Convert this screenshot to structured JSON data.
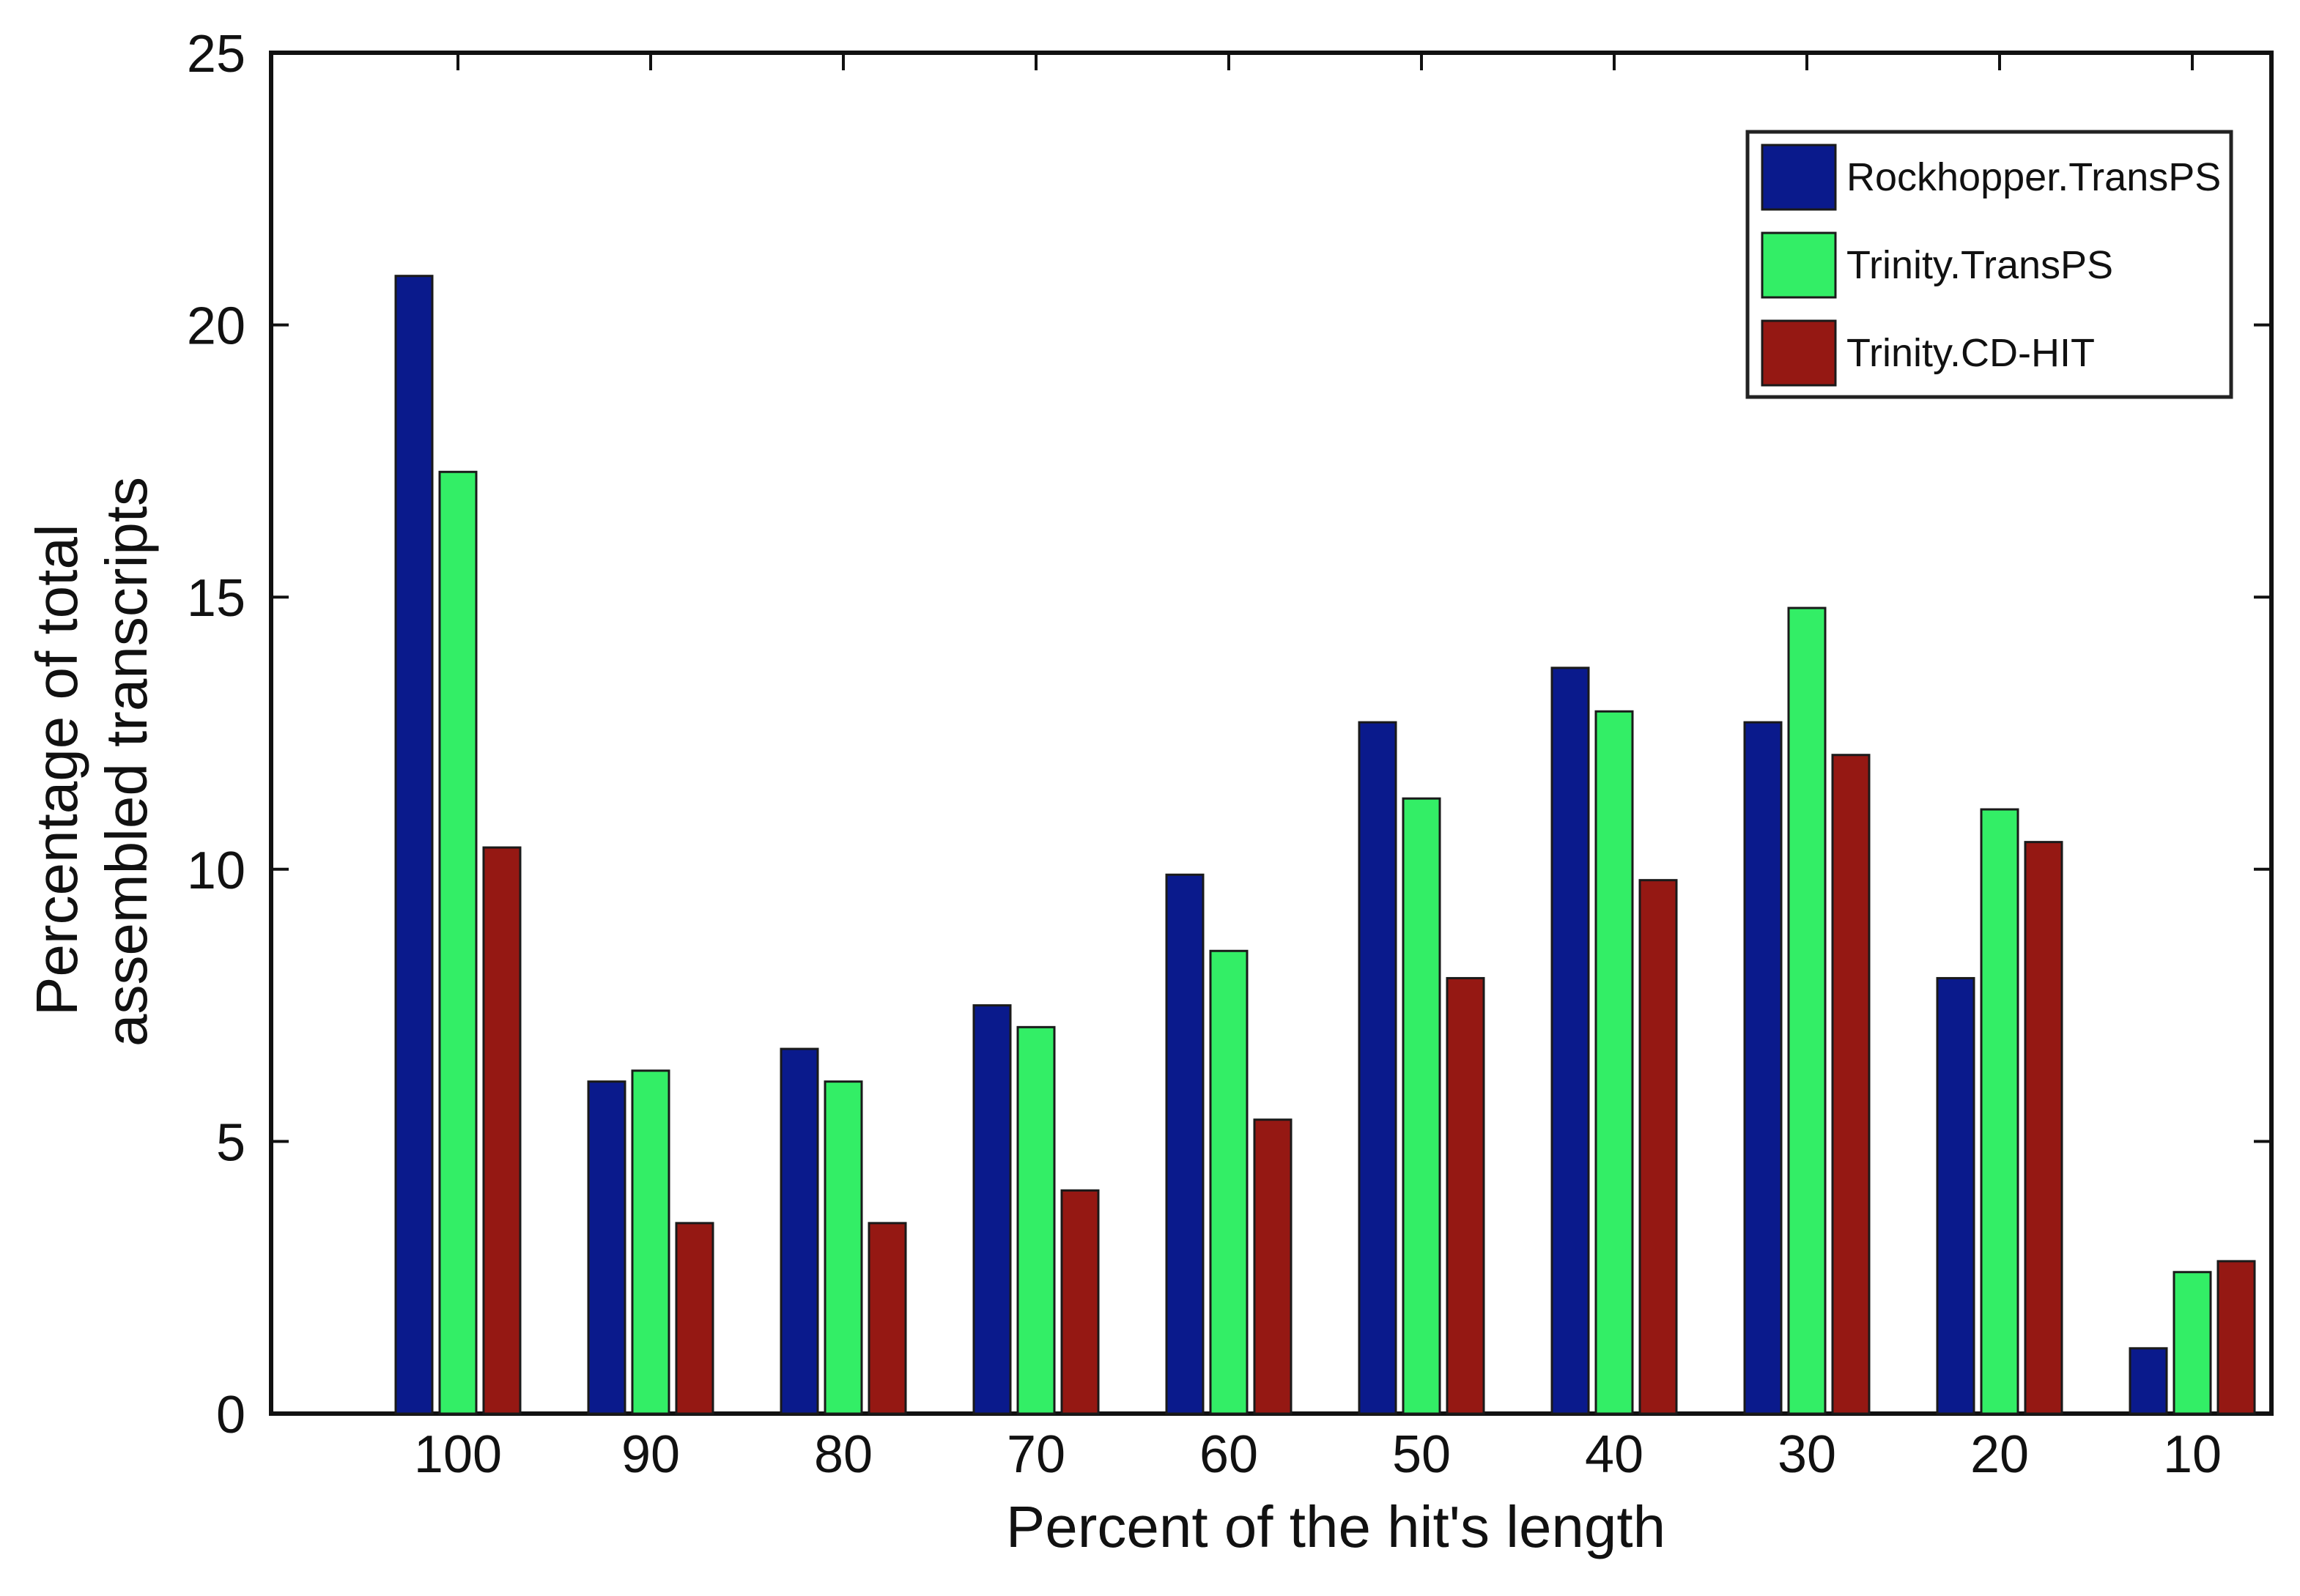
{
  "chart_data": {
    "type": "bar",
    "title": "",
    "xlabel": "Percent of the hit's length",
    "ylabel_lines": [
      "Percentage of total",
      "assembled transcripts"
    ],
    "categories": [
      "100",
      "90",
      "80",
      "70",
      "60",
      "50",
      "40",
      "30",
      "20",
      "10"
    ],
    "ylim": [
      0,
      25
    ],
    "yticks": [
      0,
      5,
      10,
      15,
      20,
      25
    ],
    "grid": false,
    "legend_position": "top-right",
    "series": [
      {
        "name": "Rockhopper.TransPS",
        "color": "#0a1a8c",
        "values": [
          20.9,
          6.1,
          6.7,
          7.5,
          9.9,
          12.7,
          13.7,
          12.7,
          8.0,
          1.2
        ]
      },
      {
        "name": "Trinity.TransPS",
        "color": "#33ee66",
        "values": [
          17.3,
          6.3,
          6.1,
          7.1,
          8.5,
          11.3,
          12.9,
          14.8,
          11.1,
          2.6
        ]
      },
      {
        "name": "Trinity.CD-HIT",
        "color": "#951813",
        "values": [
          10.4,
          3.5,
          3.5,
          4.1,
          5.4,
          8.0,
          9.8,
          12.1,
          10.5,
          2.8
        ]
      }
    ]
  }
}
